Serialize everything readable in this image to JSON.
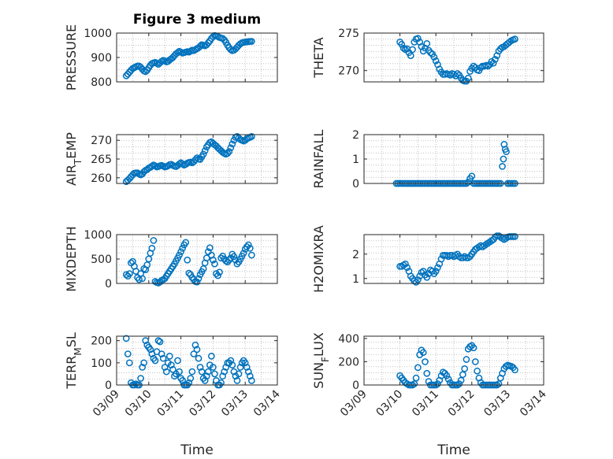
{
  "figure": {
    "title": "Figure 3 medium",
    "background": "#ffffff",
    "marker_color": "#0072BD"
  },
  "chart_data": [
    {
      "type": "scatter",
      "id": "pressure",
      "title": "Figure 3 medium",
      "ylabel": "PRESSURE",
      "ylim": [
        800,
        1000
      ],
      "yticks": [
        800,
        900,
        1000
      ],
      "xlim": [
        0,
        5
      ],
      "show_x_ticks": false,
      "grid": true,
      "x": [
        0.3,
        0.35,
        0.4,
        0.45,
        0.5,
        0.55,
        0.6,
        0.65,
        0.7,
        0.75,
        0.8,
        0.85,
        0.9,
        0.95,
        1.0,
        1.05,
        1.1,
        1.15,
        1.2,
        1.25,
        1.3,
        1.35,
        1.4,
        1.45,
        1.5,
        1.55,
        1.6,
        1.65,
        1.7,
        1.75,
        1.8,
        1.85,
        1.9,
        1.95,
        2.0,
        2.05,
        2.1,
        2.15,
        2.2,
        2.25,
        2.3,
        2.35,
        2.4,
        2.45,
        2.5,
        2.55,
        2.6,
        2.65,
        2.7,
        2.75,
        2.8,
        2.85,
        2.9,
        2.95,
        3.0,
        3.05,
        3.1,
        3.15,
        3.2,
        3.25,
        3.3,
        3.35,
        3.4,
        3.45,
        3.5,
        3.55,
        3.6,
        3.65,
        3.7,
        3.75,
        3.8,
        3.85,
        3.9,
        3.95,
        4.0,
        4.05,
        4.1,
        4.15,
        4.2
      ],
      "y": [
        825,
        832,
        840,
        848,
        855,
        858,
        862,
        865,
        865,
        860,
        852,
        845,
        842,
        848,
        858,
        868,
        875,
        878,
        880,
        876,
        872,
        878,
        884,
        888,
        886,
        882,
        884,
        890,
        895,
        900,
        908,
        915,
        920,
        925,
        922,
        918,
        920,
        922,
        924,
        922,
        926,
        930,
        928,
        932,
        936,
        940,
        946,
        952,
        950,
        948,
        952,
        960,
        968,
        978,
        985,
        990,
        988,
        986,
        982,
        980,
        978,
        972,
        962,
        950,
        940,
        932,
        928,
        930,
        935,
        942,
        950,
        956,
        960,
        962,
        963,
        964,
        965,
        966,
        966
      ]
    },
    {
      "type": "scatter",
      "id": "theta",
      "ylabel": "THETA",
      "ylim": [
        268.5,
        275
      ],
      "yticks": [
        270,
        275
      ],
      "xlim": [
        0,
        5
      ],
      "show_x_ticks": false,
      "grid": true,
      "x": [
        1.0,
        1.05,
        1.1,
        1.15,
        1.2,
        1.25,
        1.3,
        1.35,
        1.4,
        1.45,
        1.5,
        1.55,
        1.6,
        1.65,
        1.7,
        1.75,
        1.8,
        1.85,
        1.9,
        1.95,
        2.0,
        2.05,
        2.1,
        2.15,
        2.2,
        2.25,
        2.3,
        2.35,
        2.4,
        2.45,
        2.5,
        2.55,
        2.6,
        2.65,
        2.7,
        2.75,
        2.8,
        2.85,
        2.9,
        2.95,
        3.0,
        3.05,
        3.1,
        3.15,
        3.2,
        3.25,
        3.3,
        3.35,
        3.4,
        3.45,
        3.5,
        3.55,
        3.6,
        3.65,
        3.7,
        3.75,
        3.8,
        3.85,
        3.9,
        3.95,
        4.0,
        4.05,
        4.1,
        4.15,
        4.2
      ],
      "y": [
        273.8,
        273.5,
        273.0,
        272.8,
        272.9,
        272.4,
        272.0,
        272.8,
        273.8,
        274.2,
        274.3,
        273.8,
        273.2,
        272.6,
        273.0,
        273.6,
        272.7,
        272.4,
        272.2,
        271.8,
        271.3,
        270.8,
        270.2,
        269.8,
        269.5,
        269.5,
        269.6,
        269.5,
        269.4,
        269.6,
        269.5,
        269.3,
        269.6,
        269.4,
        269.0,
        268.7,
        268.6,
        268.6,
        269.0,
        269.9,
        270.3,
        270.6,
        270.4,
        270.1,
        270.0,
        270.4,
        270.6,
        270.6,
        270.7,
        270.6,
        270.8,
        271.2,
        271.0,
        271.5,
        272.0,
        272.6,
        272.9,
        273.1,
        273.2,
        273.4,
        273.6,
        273.8,
        274.0,
        274.1,
        274.2
      ]
    },
    {
      "type": "scatter",
      "id": "air-temp",
      "ylabel": "AIR_TEMP",
      "ylim": [
        258.5,
        271.5
      ],
      "yticks": [
        260,
        265,
        270
      ],
      "xlim": [
        0,
        5
      ],
      "show_x_ticks": false,
      "grid": true,
      "x": [
        0.3,
        0.35,
        0.4,
        0.45,
        0.5,
        0.55,
        0.6,
        0.65,
        0.7,
        0.75,
        0.8,
        0.85,
        0.9,
        0.95,
        1.0,
        1.05,
        1.1,
        1.15,
        1.2,
        1.25,
        1.3,
        1.35,
        1.4,
        1.45,
        1.5,
        1.55,
        1.6,
        1.65,
        1.7,
        1.75,
        1.8,
        1.85,
        1.9,
        1.95,
        2.0,
        2.05,
        2.1,
        2.15,
        2.2,
        2.25,
        2.3,
        2.35,
        2.4,
        2.45,
        2.5,
        2.55,
        2.6,
        2.65,
        2.7,
        2.75,
        2.8,
        2.85,
        2.9,
        2.95,
        3.0,
        3.05,
        3.1,
        3.15,
        3.2,
        3.25,
        3.3,
        3.35,
        3.4,
        3.45,
        3.5,
        3.55,
        3.6,
        3.65,
        3.7,
        3.75,
        3.8,
        3.85,
        3.9,
        3.95,
        4.0,
        4.05,
        4.1,
        4.15,
        4.2
      ],
      "y": [
        259.0,
        259.4,
        259.8,
        260.3,
        260.8,
        261.2,
        261.3,
        261.3,
        261.0,
        260.8,
        261.0,
        261.6,
        262.0,
        262.2,
        262.6,
        262.8,
        263.1,
        263.4,
        263.2,
        262.9,
        263.0,
        263.2,
        263.3,
        263.1,
        262.9,
        263.0,
        263.2,
        263.5,
        263.6,
        263.3,
        263.1,
        263.0,
        263.3,
        263.7,
        264.0,
        263.7,
        263.4,
        263.6,
        263.9,
        264.1,
        264.2,
        264.0,
        264.3,
        264.8,
        265.3,
        265.0,
        264.9,
        265.6,
        266.3,
        267.2,
        268.2,
        268.8,
        269.4,
        269.6,
        269.2,
        268.8,
        268.5,
        268.0,
        267.6,
        267.2,
        266.8,
        266.5,
        266.3,
        266.5,
        267.0,
        268.0,
        269.0,
        270.0,
        270.8,
        271.0,
        270.6,
        270.2,
        270.0,
        269.8,
        270.0,
        270.4,
        270.6,
        270.8,
        271.0
      ]
    },
    {
      "type": "scatter",
      "id": "rainfall",
      "ylabel": "RAINFALL",
      "ylim": [
        0,
        2
      ],
      "yticks": [
        0,
        1,
        2
      ],
      "xlim": [
        0,
        5
      ],
      "show_x_ticks": false,
      "grid": true,
      "x": [
        0.9,
        0.95,
        1.0,
        1.05,
        1.1,
        1.15,
        1.2,
        1.25,
        1.3,
        1.35,
        1.4,
        1.45,
        1.5,
        1.55,
        1.6,
        1.65,
        1.7,
        1.75,
        1.8,
        1.85,
        1.9,
        1.95,
        2.0,
        2.05,
        2.1,
        2.15,
        2.2,
        2.25,
        2.3,
        2.35,
        2.4,
        2.45,
        2.5,
        2.55,
        2.6,
        2.65,
        2.7,
        2.75,
        2.8,
        2.85,
        2.9,
        2.95,
        3.0,
        3.05,
        3.1,
        3.15,
        3.2,
        3.25,
        3.3,
        3.35,
        3.4,
        3.45,
        3.5,
        3.55,
        3.6,
        3.65,
        3.7,
        3.75,
        3.8,
        3.85,
        3.88,
        3.9,
        3.93,
        3.96,
        4.0,
        4.05,
        4.1,
        4.15,
        4.2
      ],
      "y": [
        0,
        0,
        0,
        0,
        0,
        0,
        0,
        0,
        0,
        0,
        0,
        0,
        0,
        0,
        0,
        0,
        0,
        0,
        0,
        0,
        0,
        0,
        0,
        0,
        0,
        0,
        0,
        0,
        0,
        0,
        0,
        0,
        0,
        0,
        0,
        0,
        0,
        0,
        0,
        0,
        0.05,
        0.2,
        0.3,
        0,
        0,
        0,
        0,
        0,
        0,
        0,
        0,
        0,
        0,
        0,
        0,
        0,
        0,
        0,
        0,
        0.7,
        1.0,
        1.6,
        1.4,
        1.3,
        0,
        0,
        0,
        0,
        0
      ]
    },
    {
      "type": "scatter",
      "id": "mixdepth",
      "ylabel": "MIXDEPTH",
      "ylim": [
        0,
        1000
      ],
      "yticks": [
        0,
        500,
        1000
      ],
      "xlim": [
        0,
        5
      ],
      "show_x_ticks": false,
      "grid": true,
      "x": [
        0.3,
        0.35,
        0.4,
        0.45,
        0.5,
        0.55,
        0.6,
        0.65,
        0.7,
        0.75,
        0.8,
        0.85,
        0.9,
        0.95,
        1.0,
        1.05,
        1.1,
        1.15,
        1.2,
        1.25,
        1.3,
        1.35,
        1.4,
        1.45,
        1.5,
        1.55,
        1.6,
        1.65,
        1.7,
        1.75,
        1.8,
        1.85,
        1.9,
        1.95,
        2.0,
        2.05,
        2.1,
        2.15,
        2.2,
        2.25,
        2.3,
        2.35,
        2.4,
        2.45,
        2.5,
        2.55,
        2.6,
        2.65,
        2.7,
        2.75,
        2.8,
        2.85,
        2.9,
        2.95,
        3.0,
        3.05,
        3.1,
        3.15,
        3.2,
        3.25,
        3.3,
        3.35,
        3.4,
        3.45,
        3.5,
        3.55,
        3.6,
        3.65,
        3.7,
        3.75,
        3.8,
        3.85,
        3.9,
        3.95,
        4.0,
        4.05,
        4.1,
        4.15,
        4.2
      ],
      "y": [
        180,
        150,
        200,
        420,
        450,
        350,
        250,
        120,
        80,
        200,
        100,
        300,
        280,
        380,
        500,
        620,
        720,
        880,
        40,
        20,
        10,
        30,
        60,
        80,
        100,
        150,
        200,
        250,
        300,
        350,
        400,
        460,
        520,
        580,
        650,
        720,
        790,
        840,
        480,
        210,
        180,
        120,
        80,
        40,
        30,
        100,
        180,
        240,
        300,
        420,
        520,
        650,
        730,
        580,
        480,
        400,
        200,
        160,
        230,
        520,
        560,
        500,
        460,
        440,
        480,
        520,
        600,
        550,
        480,
        400,
        440,
        500,
        560,
        620,
        700,
        750,
        790,
        720,
        580
      ]
    },
    {
      "type": "scatter",
      "id": "h2omixra",
      "ylabel": "H2OMIXRA",
      "ylim": [
        0.8,
        2.8
      ],
      "yticks": [
        1,
        2
      ],
      "xlim": [
        0,
        5
      ],
      "show_x_ticks": false,
      "grid": true,
      "x": [
        1.0,
        1.05,
        1.1,
        1.15,
        1.2,
        1.25,
        1.3,
        1.35,
        1.4,
        1.45,
        1.5,
        1.55,
        1.6,
        1.65,
        1.7,
        1.75,
        1.8,
        1.85,
        1.9,
        1.95,
        2.0,
        2.05,
        2.1,
        2.15,
        2.2,
        2.25,
        2.3,
        2.35,
        2.4,
        2.45,
        2.5,
        2.55,
        2.6,
        2.65,
        2.7,
        2.75,
        2.8,
        2.85,
        2.9,
        2.95,
        3.0,
        3.05,
        3.1,
        3.15,
        3.2,
        3.25,
        3.3,
        3.35,
        3.4,
        3.45,
        3.5,
        3.55,
        3.6,
        3.65,
        3.7,
        3.75,
        3.8,
        3.85,
        3.9,
        3.95,
        4.0,
        4.05,
        4.1,
        4.15,
        4.2
      ],
      "y": [
        1.5,
        1.5,
        1.55,
        1.6,
        1.45,
        1.3,
        1.1,
        1.0,
        0.9,
        0.85,
        0.95,
        1.1,
        1.25,
        1.3,
        1.15,
        1.05,
        1.2,
        1.35,
        1.3,
        1.2,
        1.3,
        1.45,
        1.6,
        1.8,
        1.95,
        1.95,
        1.95,
        1.9,
        1.95,
        1.95,
        1.9,
        1.95,
        2.0,
        1.9,
        1.85,
        1.85,
        1.9,
        1.85,
        1.85,
        1.9,
        2.0,
        2.1,
        2.2,
        2.25,
        2.3,
        2.35,
        2.3,
        2.35,
        2.4,
        2.45,
        2.5,
        2.55,
        2.6,
        2.7,
        2.75,
        2.75,
        2.7,
        2.65,
        2.6,
        2.65,
        2.7,
        2.72,
        2.72,
        2.72,
        2.72
      ]
    },
    {
      "type": "scatter",
      "id": "terr-msl",
      "ylabel": "TERR_MSL",
      "xlabel": "Time",
      "ylim": [
        0,
        220
      ],
      "yticks": [
        0,
        100,
        200
      ],
      "xlim": [
        0,
        5
      ],
      "xticks": [
        0,
        1,
        2,
        3,
        4,
        5
      ],
      "xticklabels": [
        "03/09",
        "03/10",
        "03/11",
        "03/12",
        "03/13",
        "03/14"
      ],
      "grid": true,
      "x": [
        0.3,
        0.35,
        0.4,
        0.45,
        0.5,
        0.55,
        0.6,
        0.65,
        0.7,
        0.75,
        0.8,
        0.85,
        0.9,
        0.95,
        1.0,
        1.05,
        1.1,
        1.15,
        1.2,
        1.25,
        1.3,
        1.35,
        1.4,
        1.45,
        1.5,
        1.55,
        1.6,
        1.65,
        1.7,
        1.75,
        1.8,
        1.85,
        1.9,
        1.95,
        2.0,
        2.05,
        2.1,
        2.15,
        2.2,
        2.25,
        2.3,
        2.35,
        2.4,
        2.45,
        2.5,
        2.55,
        2.6,
        2.65,
        2.7,
        2.75,
        2.8,
        2.85,
        2.9,
        2.95,
        3.0,
        3.05,
        3.1,
        3.15,
        3.2,
        3.25,
        3.3,
        3.35,
        3.4,
        3.45,
        3.5,
        3.55,
        3.6,
        3.65,
        3.7,
        3.75,
        3.8,
        3.85,
        3.9,
        3.95,
        4.0,
        4.05,
        4.1,
        4.15,
        4.2
      ],
      "y": [
        210,
        140,
        100,
        10,
        0,
        0,
        5,
        0,
        0,
        30,
        80,
        100,
        200,
        180,
        170,
        160,
        140,
        120,
        110,
        150,
        200,
        195,
        140,
        120,
        80,
        60,
        100,
        130,
        90,
        70,
        40,
        50,
        110,
        60,
        30,
        20,
        0,
        0,
        0,
        10,
        30,
        60,
        140,
        180,
        160,
        120,
        80,
        60,
        30,
        20,
        40,
        60,
        90,
        130,
        80,
        50,
        20,
        0,
        0,
        10,
        40,
        60,
        80,
        100,
        100,
        110,
        90,
        60,
        40,
        20,
        50,
        80,
        100,
        110,
        100,
        80,
        60,
        40,
        20
      ]
    },
    {
      "type": "scatter",
      "id": "sun-flux",
      "ylabel": "SUN_FLUX",
      "xlabel": "Time",
      "ylim": [
        0,
        420
      ],
      "yticks": [
        0,
        200,
        400
      ],
      "xlim": [
        0,
        5
      ],
      "xticks": [
        0,
        1,
        2,
        3,
        4,
        5
      ],
      "xticklabels": [
        "03/09",
        "03/10",
        "03/11",
        "03/12",
        "03/13",
        "03/14"
      ],
      "grid": true,
      "x": [
        1.0,
        1.05,
        1.1,
        1.15,
        1.2,
        1.25,
        1.3,
        1.35,
        1.4,
        1.45,
        1.5,
        1.55,
        1.6,
        1.65,
        1.7,
        1.75,
        1.8,
        1.85,
        1.9,
        1.95,
        2.0,
        2.05,
        2.1,
        2.15,
        2.2,
        2.25,
        2.3,
        2.35,
        2.4,
        2.45,
        2.5,
        2.55,
        2.6,
        2.65,
        2.7,
        2.75,
        2.8,
        2.85,
        2.9,
        2.95,
        3.0,
        3.05,
        3.1,
        3.15,
        3.2,
        3.25,
        3.3,
        3.35,
        3.4,
        3.45,
        3.5,
        3.55,
        3.6,
        3.65,
        3.7,
        3.75,
        3.8,
        3.85,
        3.9,
        3.95,
        4.0,
        4.05,
        4.1,
        4.15,
        4.2
      ],
      "y": [
        80,
        60,
        40,
        20,
        10,
        0,
        0,
        0,
        10,
        60,
        150,
        260,
        300,
        280,
        200,
        100,
        30,
        0,
        0,
        0,
        0,
        10,
        40,
        80,
        110,
        100,
        80,
        50,
        20,
        0,
        0,
        0,
        0,
        10,
        40,
        90,
        140,
        220,
        310,
        330,
        340,
        320,
        200,
        120,
        60,
        20,
        0,
        0,
        0,
        0,
        0,
        0,
        0,
        0,
        0,
        10,
        60,
        100,
        140,
        160,
        170,
        165,
        160,
        150,
        130
      ]
    }
  ]
}
